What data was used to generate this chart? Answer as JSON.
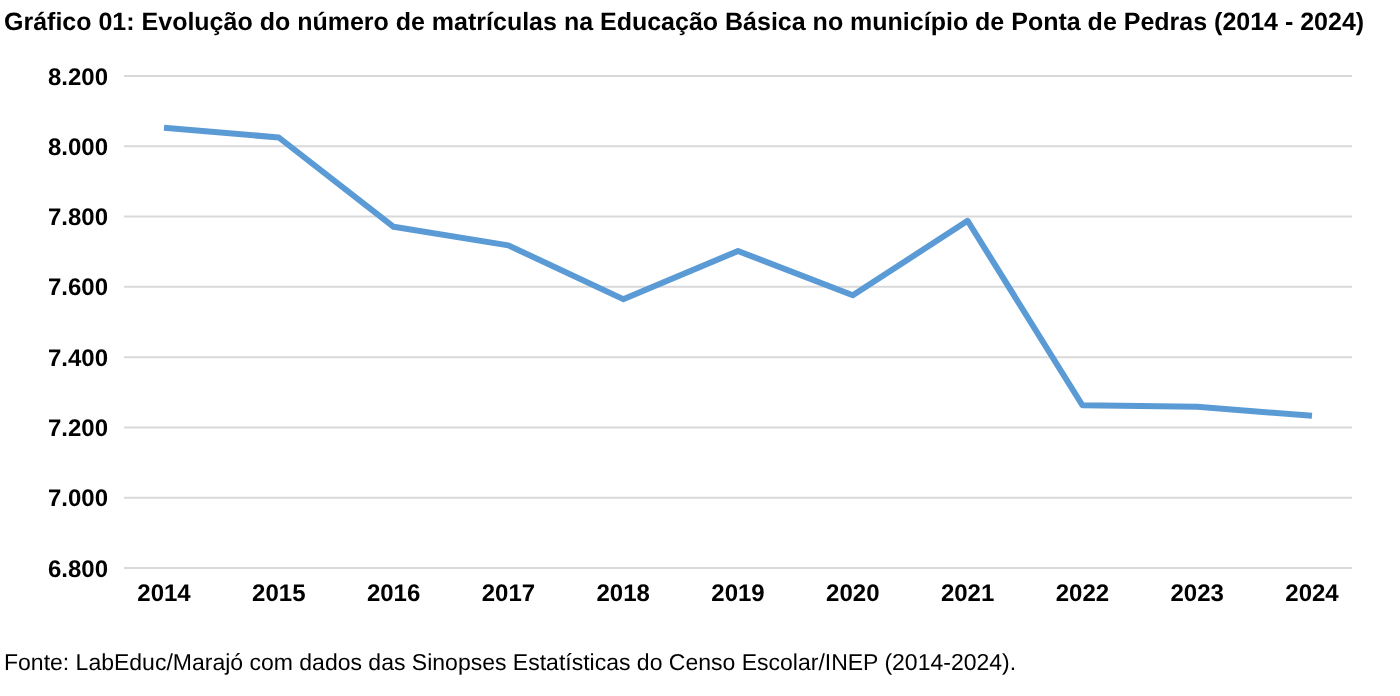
{
  "chart_data": {
    "type": "line",
    "title": "Gráfico 01: Evolução do número de matrículas na Educação Básica no município de Ponta de Pedras (2014 - 2024)",
    "categories": [
      "2014",
      "2015",
      "2016",
      "2017",
      "2018",
      "2019",
      "2020",
      "2021",
      "2022",
      "2023",
      "2024"
    ],
    "series": [
      {
        "color": "#5b9bd5",
        "values": [
          8053,
          8025,
          7771,
          7718,
          7565,
          7702,
          7576,
          7788,
          7263,
          7259,
          7233
        ]
      }
    ],
    "ylim": [
      6800,
      8200
    ],
    "yticks": [
      {
        "value": 6800,
        "label": "6.800"
      },
      {
        "value": 7000,
        "label": "7.000"
      },
      {
        "value": 7200,
        "label": "7.200"
      },
      {
        "value": 7400,
        "label": "7.400"
      },
      {
        "value": 7600,
        "label": "7.600"
      },
      {
        "value": 7800,
        "label": "7.800"
      },
      {
        "value": 8000,
        "label": "8.000"
      },
      {
        "value": 8200,
        "label": "8.200"
      }
    ],
    "grid": "y",
    "legend": false,
    "marker": "none",
    "line_style": "solid",
    "annotations": [
      "Fonte: LabEduc/Marajó com dados das Sinopses Estatísticas do Censo Escolar/INEP (2014-2024)."
    ]
  }
}
